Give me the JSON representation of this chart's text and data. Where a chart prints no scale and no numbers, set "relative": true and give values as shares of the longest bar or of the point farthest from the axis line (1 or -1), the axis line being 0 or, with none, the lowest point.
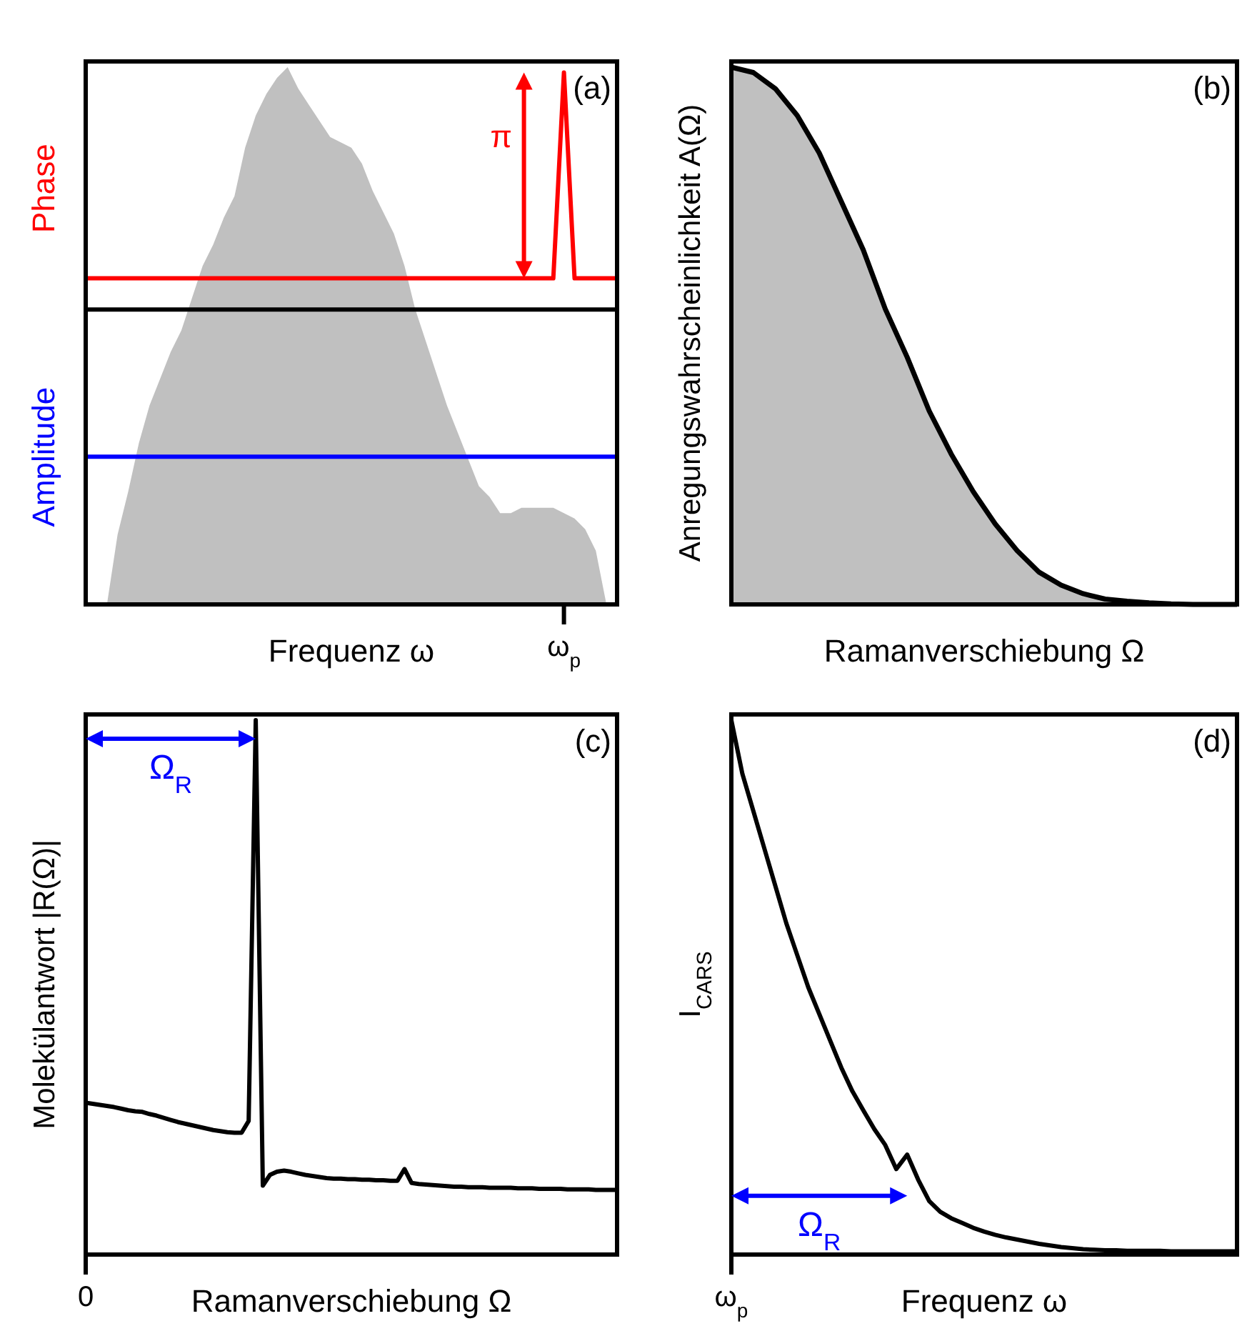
{
  "chart_data": [
    {
      "type": "line",
      "relative": true,
      "xlabel": "Frequenz ω",
      "ylabel": "Amplitude",
      "y2label": "Phase",
      "annotations": [
        "(a)",
        "π",
        "ω$_{p}$"
      ],
      "categories": [
        null,
        null,
        null,
        null,
        null,
        null,
        null,
        null,
        null,
        null,
        null,
        null,
        null,
        null,
        null,
        null,
        null,
        null,
        null,
        null,
        null,
        null,
        null,
        null,
        null,
        null,
        null,
        null,
        null,
        null,
        null,
        null,
        null,
        null,
        null,
        null,
        null,
        null,
        null,
        null,
        null,
        null,
        null,
        null,
        null,
        null,
        null,
        null,
        null,
        null,
        null
      ],
      "ref_lines": [
        {
          "axis": "y",
          "value": 0.549,
          "color": "#000000"
        }
      ],
      "series": [
        {
          "type": "area",
          "color": "#c0c0c0",
          "values": [
            0,
            0,
            0,
            0.13,
            0.21,
            0.3,
            0.37,
            0.42,
            0.47,
            0.51,
            0.57,
            0.63,
            0.67,
            0.72,
            0.76,
            0.85,
            0.91,
            0.95,
            0.98,
            1.0,
            0.96,
            0.93,
            0.9,
            0.87,
            0.86,
            0.85,
            0.82,
            0.77,
            0.73,
            0.69,
            0.63,
            0.55,
            0.49,
            0.43,
            0.37,
            0.32,
            0.27,
            0.22,
            0.2,
            0.17,
            0.17,
            0.18,
            0.18,
            0.18,
            0.18,
            0.17,
            0.16,
            0.14,
            0.1,
            0,
            0
          ]
        },
        {
          "color": "#ff0000",
          "values": [
            0.607,
            0.607,
            0.607,
            0.607,
            0.607,
            0.607,
            0.607,
            0.607,
            0.607,
            0.607,
            0.607,
            0.607,
            0.607,
            0.607,
            0.607,
            0.607,
            0.607,
            0.607,
            0.607,
            0.607,
            0.607,
            0.607,
            0.607,
            0.607,
            0.607,
            0.607,
            0.607,
            0.607,
            0.607,
            0.607,
            0.607,
            0.607,
            0.607,
            0.607,
            0.607,
            0.607,
            0.607,
            0.607,
            0.607,
            0.607,
            0.607,
            0.607,
            0.607,
            0.607,
            0.607,
            0.99,
            0.607,
            0.607,
            0.607,
            0.607,
            0.607
          ]
        },
        {
          "color": "#0000ff",
          "values": [
            0.275,
            0.275,
            0.275,
            0.275,
            0.275,
            0.275,
            0.275,
            0.275,
            0.275,
            0.275,
            0.275,
            0.275,
            0.275,
            0.275,
            0.275,
            0.275,
            0.275,
            0.275,
            0.275,
            0.275,
            0.275,
            0.275,
            0.275,
            0.275,
            0.275,
            0.275,
            0.275,
            0.275,
            0.275,
            0.275,
            0.275,
            0.275,
            0.275,
            0.275,
            0.275,
            0.275,
            0.275,
            0.275,
            0.275,
            0.275,
            0.275,
            0.275,
            0.275,
            0.275,
            0.275,
            0.275,
            0.275,
            0.275,
            0.275,
            0.275,
            0.275
          ]
        }
      ]
    },
    {
      "type": "area",
      "relative": true,
      "xlabel": "Ramanverschiebung Ω",
      "ylabel": "Anregungswahrscheinlichkeit A(Ω)",
      "annotations": [
        "(b)"
      ],
      "categories": [
        null,
        null,
        null,
        null,
        null,
        null,
        null,
        null,
        null,
        null,
        null,
        null,
        null,
        null,
        null,
        null,
        null,
        null,
        null,
        null,
        null,
        null,
        null,
        null
      ],
      "series": [
        {
          "color": "#c0c0c0",
          "values": [
            1,
            0.99,
            0.96,
            0.91,
            0.84,
            0.75,
            0.66,
            0.55,
            0.46,
            0.36,
            0.28,
            0.21,
            0.15,
            0.1,
            0.06,
            0.036,
            0.02,
            0.01,
            0.006,
            0.003,
            0.001,
            0,
            0,
            0
          ]
        }
      ]
    },
    {
      "type": "line",
      "relative": true,
      "xlabel": "Ramanverschiebung Ω",
      "ylabel": "Molekülantwort |R(Ω)|",
      "annotations": [
        "(c)",
        "Ω$_{R}$",
        "0"
      ],
      "categories": [
        null,
        null,
        null,
        null,
        null,
        null,
        null,
        null,
        null,
        null,
        null,
        null,
        null,
        null,
        null,
        null,
        null,
        null,
        null,
        null,
        null,
        null,
        null,
        null,
        null,
        null,
        null,
        null,
        null,
        null,
        null,
        null,
        null,
        null,
        null,
        null,
        null,
        null,
        null,
        null,
        null,
        null,
        null,
        null,
        null,
        null,
        null,
        null,
        null,
        null,
        null,
        null,
        null,
        null,
        null,
        null,
        null,
        null,
        null,
        null,
        null,
        null,
        null,
        null,
        null,
        null,
        null,
        null,
        null,
        null,
        null,
        null,
        null,
        null,
        null,
        null
      ],
      "series": [
        {
          "color": "#000000",
          "values": [
            0.284,
            0.282,
            0.28,
            0.278,
            0.276,
            0.273,
            0.27,
            0.268,
            0.267,
            0.263,
            0.26,
            0.256,
            0.252,
            0.248,
            0.245,
            0.242,
            0.239,
            0.236,
            0.233,
            0.231,
            0.229,
            0.228,
            0.228,
            0.25,
            1.0,
            0.129,
            0.149,
            0.155,
            0.157,
            0.155,
            0.152,
            0.149,
            0.147,
            0.145,
            0.143,
            0.142,
            0.142,
            0.141,
            0.141,
            0.14,
            0.14,
            0.139,
            0.139,
            0.138,
            0.138,
            0.16,
            0.134,
            0.132,
            0.131,
            0.13,
            0.129,
            0.128,
            0.127,
            0.127,
            0.126,
            0.126,
            0.126,
            0.125,
            0.125,
            0.125,
            0.125,
            0.124,
            0.124,
            0.124,
            0.123,
            0.123,
            0.123,
            0.123,
            0.122,
            0.122,
            0.122,
            0.122,
            0.121,
            0.121,
            0.121,
            0.121
          ]
        }
      ]
    },
    {
      "type": "line",
      "relative": true,
      "xlabel": "Frequenz ω",
      "ylabel": "I$_{CARS}$",
      "annotations": [
        "(d)",
        "Ω$_{R}$",
        "ω$_{p}$"
      ],
      "categories": [
        null,
        null,
        null,
        null,
        null,
        null,
        null,
        null,
        null,
        null,
        null,
        null,
        null,
        null,
        null,
        null,
        null,
        null,
        null,
        null,
        null,
        null,
        null,
        null,
        null,
        null,
        null,
        null,
        null,
        null,
        null,
        null,
        null,
        null,
        null,
        null,
        null,
        null,
        null,
        null,
        null,
        null,
        null,
        null,
        null,
        null,
        null
      ],
      "series": [
        {
          "color": "#000000",
          "values": [
            1,
            0.9,
            0.83,
            0.76,
            0.69,
            0.62,
            0.56,
            0.5,
            0.45,
            0.4,
            0.35,
            0.306,
            0.27,
            0.235,
            0.205,
            0.16,
            0.187,
            0.14,
            0.1,
            0.08,
            0.068,
            0.059,
            0.05,
            0.043,
            0.037,
            0.032,
            0.028,
            0.024,
            0.02,
            0.017,
            0.014,
            0.012,
            0.01,
            0.009,
            0.008,
            0.008,
            0.007,
            0.007,
            0.007,
            0.007,
            0.006,
            0.006,
            0.006,
            0.006,
            0.006,
            0.006,
            0.006
          ]
        }
      ]
    }
  ]
}
